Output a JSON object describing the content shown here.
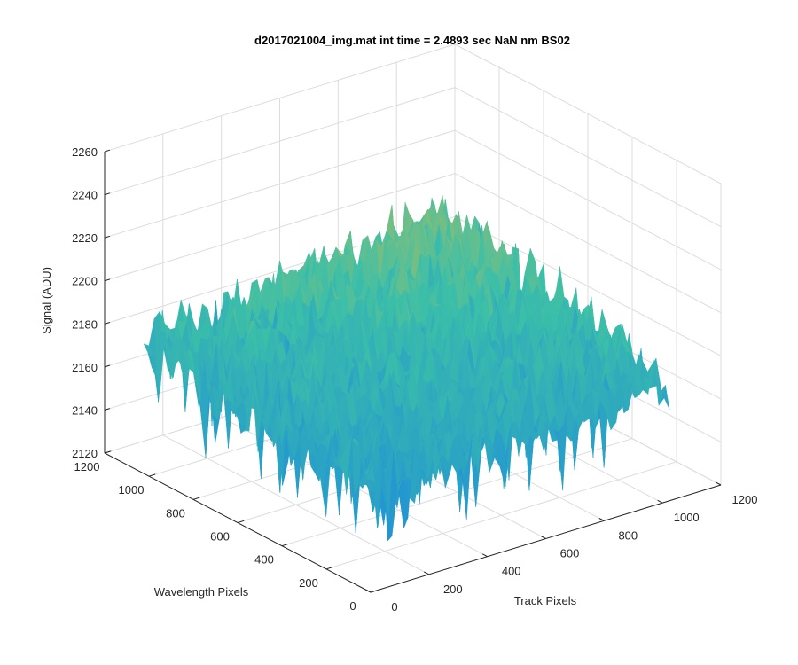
{
  "chart_data": {
    "type": "surface",
    "title": "d2017021004_img.mat int time = 2.4893 sec  NaN nm BS02",
    "xlabel": "Track Pixels",
    "ylabel": "Wavelength Pixels",
    "zlabel": "Signal (ADU)",
    "xlim": [
      0,
      1200
    ],
    "ylim": [
      0,
      1200
    ],
    "zlim": [
      2120,
      2260
    ],
    "x_ticks": [
      "0",
      "200",
      "400",
      "600",
      "800",
      "1000",
      "1200"
    ],
    "y_ticks": [
      "0",
      "200",
      "400",
      "600",
      "800",
      "1000",
      "1200"
    ],
    "z_ticks": [
      "2120",
      "2140",
      "2160",
      "2180",
      "2200",
      "2220",
      "2240",
      "2260"
    ],
    "grid": true,
    "colormap": "parula",
    "surface": {
      "x_extent": [
        0,
        1024
      ],
      "y_extent": [
        0,
        1024
      ],
      "mean_signal": 2185,
      "corner_levels": {
        "x0_y0": 2165,
        "xmax_y0": 2175,
        "x0_ymax": 2180,
        "xmax_ymax": 2200
      },
      "noise_range": [
        2140,
        2245
      ]
    },
    "colors": {
      "low": "#1e8fd8",
      "mid": "#3cbfa8",
      "high": "#e6bd3a"
    }
  }
}
